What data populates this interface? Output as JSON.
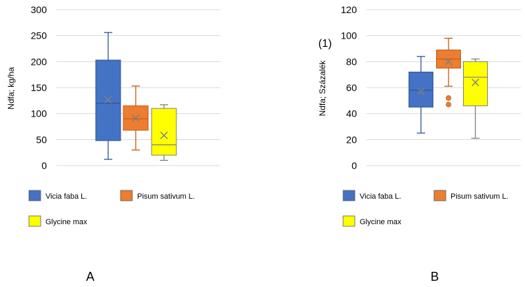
{
  "chart_data": [
    {
      "type": "box",
      "panel_label": "A",
      "ylabel": "Ndfa; kg/ha",
      "ylim": [
        0,
        300
      ],
      "yticks": [
        0,
        50,
        100,
        150,
        200,
        250,
        300
      ],
      "grid": true,
      "legend_position": "bottom",
      "series": [
        {
          "name": "Vicia faba L.",
          "color": "#4472C4",
          "stroke": "#2F5597",
          "min": 12,
          "q1": 48,
          "median": 120,
          "q3": 203,
          "max": 256,
          "mean": 127,
          "outliers": []
        },
        {
          "name": "Pisum sativum L.",
          "color": "#ED7D31",
          "stroke": "#C55A11",
          "min": 30,
          "q1": 68,
          "median": 90,
          "q3": 115,
          "max": 153,
          "mean": 91,
          "outliers": []
        },
        {
          "name": "Glycine max",
          "color": "#FFFF00",
          "stroke": "#7F7F7F",
          "min": 10,
          "q1": 20,
          "median": 40,
          "q3": 110,
          "max": 117,
          "mean": 58,
          "outliers": []
        }
      ]
    },
    {
      "type": "box",
      "panel_label": "B",
      "ylabel": "Ndfa; Százalék",
      "annotation": "(1)",
      "ylim": [
        0,
        120
      ],
      "yticks": [
        0,
        20,
        40,
        60,
        80,
        100,
        120
      ],
      "grid": true,
      "legend_position": "bottom",
      "series": [
        {
          "name": "Vicia faba L.",
          "color": "#4472C4",
          "stroke": "#2F5597",
          "min": 25,
          "q1": 45,
          "median": 58,
          "q3": 72,
          "max": 84,
          "mean": 57,
          "outliers": []
        },
        {
          "name": "Pisum sativum L.",
          "color": "#ED7D31",
          "stroke": "#C55A11",
          "min": 61,
          "q1": 75,
          "median": 82,
          "q3": 89,
          "max": 98,
          "mean": 80,
          "outliers": [
            47,
            52
          ]
        },
        {
          "name": "Glycine max",
          "color": "#FFFF00",
          "stroke": "#7F7F7F",
          "min": 21,
          "q1": 46,
          "median": 68,
          "q3": 80,
          "max": 82,
          "mean": 64,
          "outliers": []
        }
      ]
    }
  ]
}
